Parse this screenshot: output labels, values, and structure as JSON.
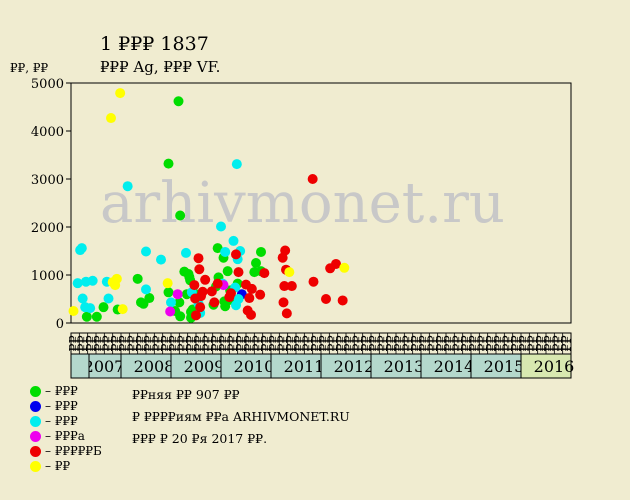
{
  "chart_data": {
    "type": "scatter",
    "title": "1 ₽₽₽ 1837",
    "subtitle": "₽₽₽ Ag, ₽₽₽ VF.",
    "ylabel": "₽₽, ₽₽",
    "ylim": [
      0,
      5000
    ],
    "yticks": [
      0,
      1000,
      2000,
      3000,
      4000,
      5000
    ],
    "months": [
      "₽₽",
      "₽₽",
      "₽₽",
      "₽₽",
      "₽₽",
      "₽₽",
      "₽₽",
      "₽₽",
      "₽₽",
      "₽₽",
      "₽₽",
      "₽₽",
      "₽₽",
      "₽₽",
      "₽₽",
      "₽₽",
      "₽₽",
      "₽₽",
      "₽₽",
      "₽₽",
      "₽₽",
      "₽₽",
      "₽₽",
      "₽₽",
      "₽₽",
      "₽₽",
      "₽₽",
      "₽₽",
      "₽₽",
      "₽₽",
      "₽₽",
      "₽₽",
      "₽₽",
      "₽₽",
      "₽₽",
      "₽₽",
      "₽₽",
      "₽₽",
      "₽₽",
      "₽₽",
      "₽₽",
      "₽₽",
      "₽₽",
      "₽₽",
      "₽₽",
      "₽₽",
      "₽₽",
      "₽₽",
      "₽₽",
      "₽₽",
      "₽₽",
      "₽₽",
      "₽₽",
      "₽₽",
      "₽₽",
      "₽₽",
      "₽₽",
      "₽₽",
      "₽₽",
      "₽₽"
    ],
    "years": [
      {
        "label": "2007",
        "color": "#b4d8cc"
      },
      {
        "label": "2008",
        "color": "#b4d8cc"
      },
      {
        "label": "2009",
        "color": "#b4d8cc"
      },
      {
        "label": "2010",
        "color": "#b4d8cc"
      },
      {
        "label": "2011",
        "color": "#b4d8cc"
      },
      {
        "label": "2012",
        "color": "#b4d8cc"
      },
      {
        "label": "2013",
        "color": "#b4d8cc"
      },
      {
        "label": "2014",
        "color": "#b4d8cc"
      },
      {
        "label": "2015",
        "color": "#b4d8cc"
      },
      {
        "label": "2016",
        "color": "#d8e8b0"
      }
    ],
    "series": [
      {
        "color": "#00dd00",
        "points": [
          [
            1.9,
            130
          ],
          [
            3.1,
            130
          ],
          [
            3.9,
            330
          ],
          [
            5.6,
            280
          ],
          [
            8.0,
            920
          ],
          [
            8.4,
            430
          ],
          [
            8.7,
            400
          ],
          [
            9.4,
            520
          ],
          [
            11.7,
            640
          ],
          [
            11.7,
            3320
          ],
          [
            12.5,
            250
          ],
          [
            12.9,
            4620
          ],
          [
            13.0,
            430
          ],
          [
            13.1,
            2240
          ],
          [
            13.1,
            140
          ],
          [
            13.6,
            1070
          ],
          [
            13.9,
            600
          ],
          [
            14.1,
            1020
          ],
          [
            14.2,
            960
          ],
          [
            14.3,
            890
          ],
          [
            14.4,
            230
          ],
          [
            14.4,
            110
          ],
          [
            14.6,
            280
          ],
          [
            14.7,
            200
          ],
          [
            15.0,
            600
          ],
          [
            17.1,
            380
          ],
          [
            17.4,
            760
          ],
          [
            17.6,
            1560
          ],
          [
            17.7,
            950
          ],
          [
            18.3,
            1360
          ],
          [
            18.4,
            450
          ],
          [
            18.5,
            350
          ],
          [
            18.8,
            1080
          ],
          [
            19.0,
            480
          ],
          [
            19.1,
            680
          ],
          [
            20.0,
            820
          ],
          [
            22.0,
            1060
          ],
          [
            22.2,
            1250
          ],
          [
            22.8,
            1480
          ],
          [
            22.8,
            1080
          ]
        ]
      },
      {
        "color": "#0000ee",
        "points": [
          [
            20.5,
            600
          ]
        ]
      },
      {
        "color": "#00eeee",
        "points": [
          [
            0.8,
            830
          ],
          [
            1.1,
            1520
          ],
          [
            1.3,
            1560
          ],
          [
            1.4,
            510
          ],
          [
            1.7,
            330
          ],
          [
            1.8,
            860
          ],
          [
            2.3,
            310
          ],
          [
            2.6,
            880
          ],
          [
            4.5,
            510
          ],
          [
            4.3,
            860
          ],
          [
            6.8,
            2850
          ],
          [
            9.0,
            1490
          ],
          [
            9.0,
            700
          ],
          [
            10.8,
            1320
          ],
          [
            12.0,
            430
          ],
          [
            13.8,
            1460
          ],
          [
            14.5,
            640
          ],
          [
            15.3,
            400
          ],
          [
            15.5,
            210
          ],
          [
            18.0,
            2010
          ],
          [
            18.2,
            820
          ],
          [
            18.5,
            1480
          ],
          [
            19.5,
            1710
          ],
          [
            19.7,
            740
          ],
          [
            19.8,
            370
          ],
          [
            19.9,
            3310
          ],
          [
            20.0,
            1330
          ],
          [
            20.1,
            500
          ],
          [
            20.3,
            1500
          ]
        ]
      },
      {
        "color": "#ee00ee",
        "points": [
          [
            11.9,
            240
          ],
          [
            12.8,
            600
          ],
          [
            18.3,
            790
          ]
        ]
      },
      {
        "color": "#ee0000",
        "points": [
          [
            14.8,
            790
          ],
          [
            14.9,
            510
          ],
          [
            15.0,
            160
          ],
          [
            15.3,
            1350
          ],
          [
            15.4,
            1120
          ],
          [
            15.5,
            330
          ],
          [
            15.6,
            560
          ],
          [
            15.8,
            650
          ],
          [
            16.1,
            900
          ],
          [
            16.9,
            660
          ],
          [
            17.2,
            430
          ],
          [
            17.6,
            820
          ],
          [
            19.0,
            540
          ],
          [
            19.2,
            620
          ],
          [
            19.8,
            1430
          ],
          [
            20.1,
            1060
          ],
          [
            21.0,
            800
          ],
          [
            21.2,
            260
          ],
          [
            21.4,
            520
          ],
          [
            21.6,
            170
          ],
          [
            21.7,
            710
          ],
          [
            22.7,
            590
          ],
          [
            23.2,
            1040
          ],
          [
            25.4,
            1360
          ],
          [
            25.5,
            430
          ],
          [
            25.6,
            770
          ],
          [
            25.7,
            1510
          ],
          [
            25.8,
            1110
          ],
          [
            25.9,
            200
          ],
          [
            26.5,
            770
          ],
          [
            29.0,
            3000
          ],
          [
            29.1,
            860
          ],
          [
            30.6,
            500
          ],
          [
            31.1,
            1140
          ],
          [
            31.8,
            1230
          ],
          [
            32.6,
            470
          ]
        ]
      },
      {
        "color": "#ffff00",
        "points": [
          [
            0.3,
            250
          ],
          [
            4.8,
            4270
          ],
          [
            5.0,
            850
          ],
          [
            5.3,
            790
          ],
          [
            5.5,
            920
          ],
          [
            5.9,
            4790
          ],
          [
            6.2,
            290
          ],
          [
            11.6,
            830
          ],
          [
            26.2,
            1060
          ],
          [
            32.8,
            1150
          ]
        ]
      }
    ],
    "legend": [
      {
        "color": "#00dd00",
        "label": "– ₽₽₽"
      },
      {
        "color": "#0000ee",
        "label": "– ₽₽₽"
      },
      {
        "color": "#00eeee",
        "label": "– ₽₽₽"
      },
      {
        "color": "#ee00ee",
        "label": "– ₽₽₽а"
      },
      {
        "color": "#ee0000",
        "label": "– ₽₽₽₽₽Б"
      },
      {
        "color": "#ffff00",
        "label": "– ₽₽"
      }
    ],
    "watermark": "arhivmonet.ru",
    "notes": [
      "₽₽няя ₽₽ 907 ₽₽",
      "₽ ₽₽₽₽иям ₽₽а ARHIVMONET.RU",
      "₽₽₽ ₽ 20 ₽я 2017 ₽₽."
    ]
  }
}
